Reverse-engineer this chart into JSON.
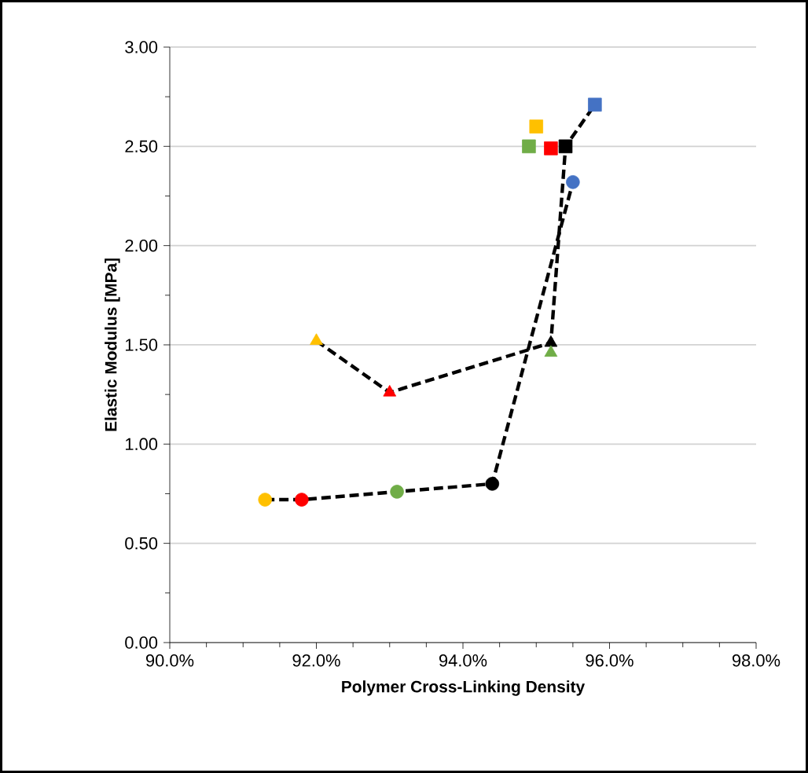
{
  "chart_data": {
    "type": "scatter",
    "xlabel": "Polymer Cross-Linking Density",
    "ylabel": "Elastic Modulus [MPa]",
    "xlim": [
      90,
      98
    ],
    "ylim": [
      0,
      3
    ],
    "xticks": [
      {
        "value": 90,
        "label": "90.0%"
      },
      {
        "value": 92,
        "label": "92.0%"
      },
      {
        "value": 94,
        "label": "94.0%"
      },
      {
        "value": 96,
        "label": "96.0%"
      },
      {
        "value": 98,
        "label": "98.0%"
      }
    ],
    "yticks": [
      {
        "value": 0,
        "label": "0.00"
      },
      {
        "value": 0.5,
        "label": "0.50"
      },
      {
        "value": 1,
        "label": "1.00"
      },
      {
        "value": 1.5,
        "label": "1.50"
      },
      {
        "value": 2,
        "label": "2.00"
      },
      {
        "value": 2.5,
        "label": "2.50"
      },
      {
        "value": 3,
        "label": "3.00"
      }
    ],
    "grid": "y",
    "series": [
      {
        "type": "line",
        "color": "#000000",
        "line_style": "dashed",
        "marker": "none",
        "x": [
          91.3,
          91.8,
          93.1,
          94.4,
          95.5
        ],
        "values": [
          0.72,
          0.72,
          0.76,
          0.8,
          2.32
        ]
      },
      {
        "type": "line",
        "color": "#000000",
        "line_style": "dashed",
        "marker": "none",
        "x": [
          92.0,
          93.0,
          95.2,
          95.4,
          95.8
        ],
        "values": [
          1.52,
          1.26,
          1.51,
          2.5,
          2.71
        ]
      },
      {
        "marker": "circle",
        "colors": [
          "#ffc000",
          "#ff0000",
          "#70ad47",
          "#000000",
          "#4472c4"
        ],
        "x": [
          91.3,
          91.8,
          93.1,
          94.4,
          95.5
        ],
        "values": [
          0.72,
          0.72,
          0.76,
          0.8,
          2.32
        ]
      },
      {
        "marker": "triangle",
        "colors": [
          "#ffc000",
          "#ff0000",
          "#000000",
          "#70ad47"
        ],
        "x": [
          92.0,
          93.0,
          95.2,
          95.2
        ],
        "values": [
          1.52,
          1.26,
          1.51,
          1.46
        ]
      },
      {
        "marker": "square",
        "colors": [
          "#70ad47",
          "#ffc000",
          "#000000",
          "#ff0000",
          "#4472c4"
        ],
        "x": [
          94.9,
          95.0,
          95.4,
          95.2,
          95.8
        ],
        "values": [
          2.5,
          2.6,
          2.5,
          2.49,
          2.71
        ]
      }
    ]
  }
}
